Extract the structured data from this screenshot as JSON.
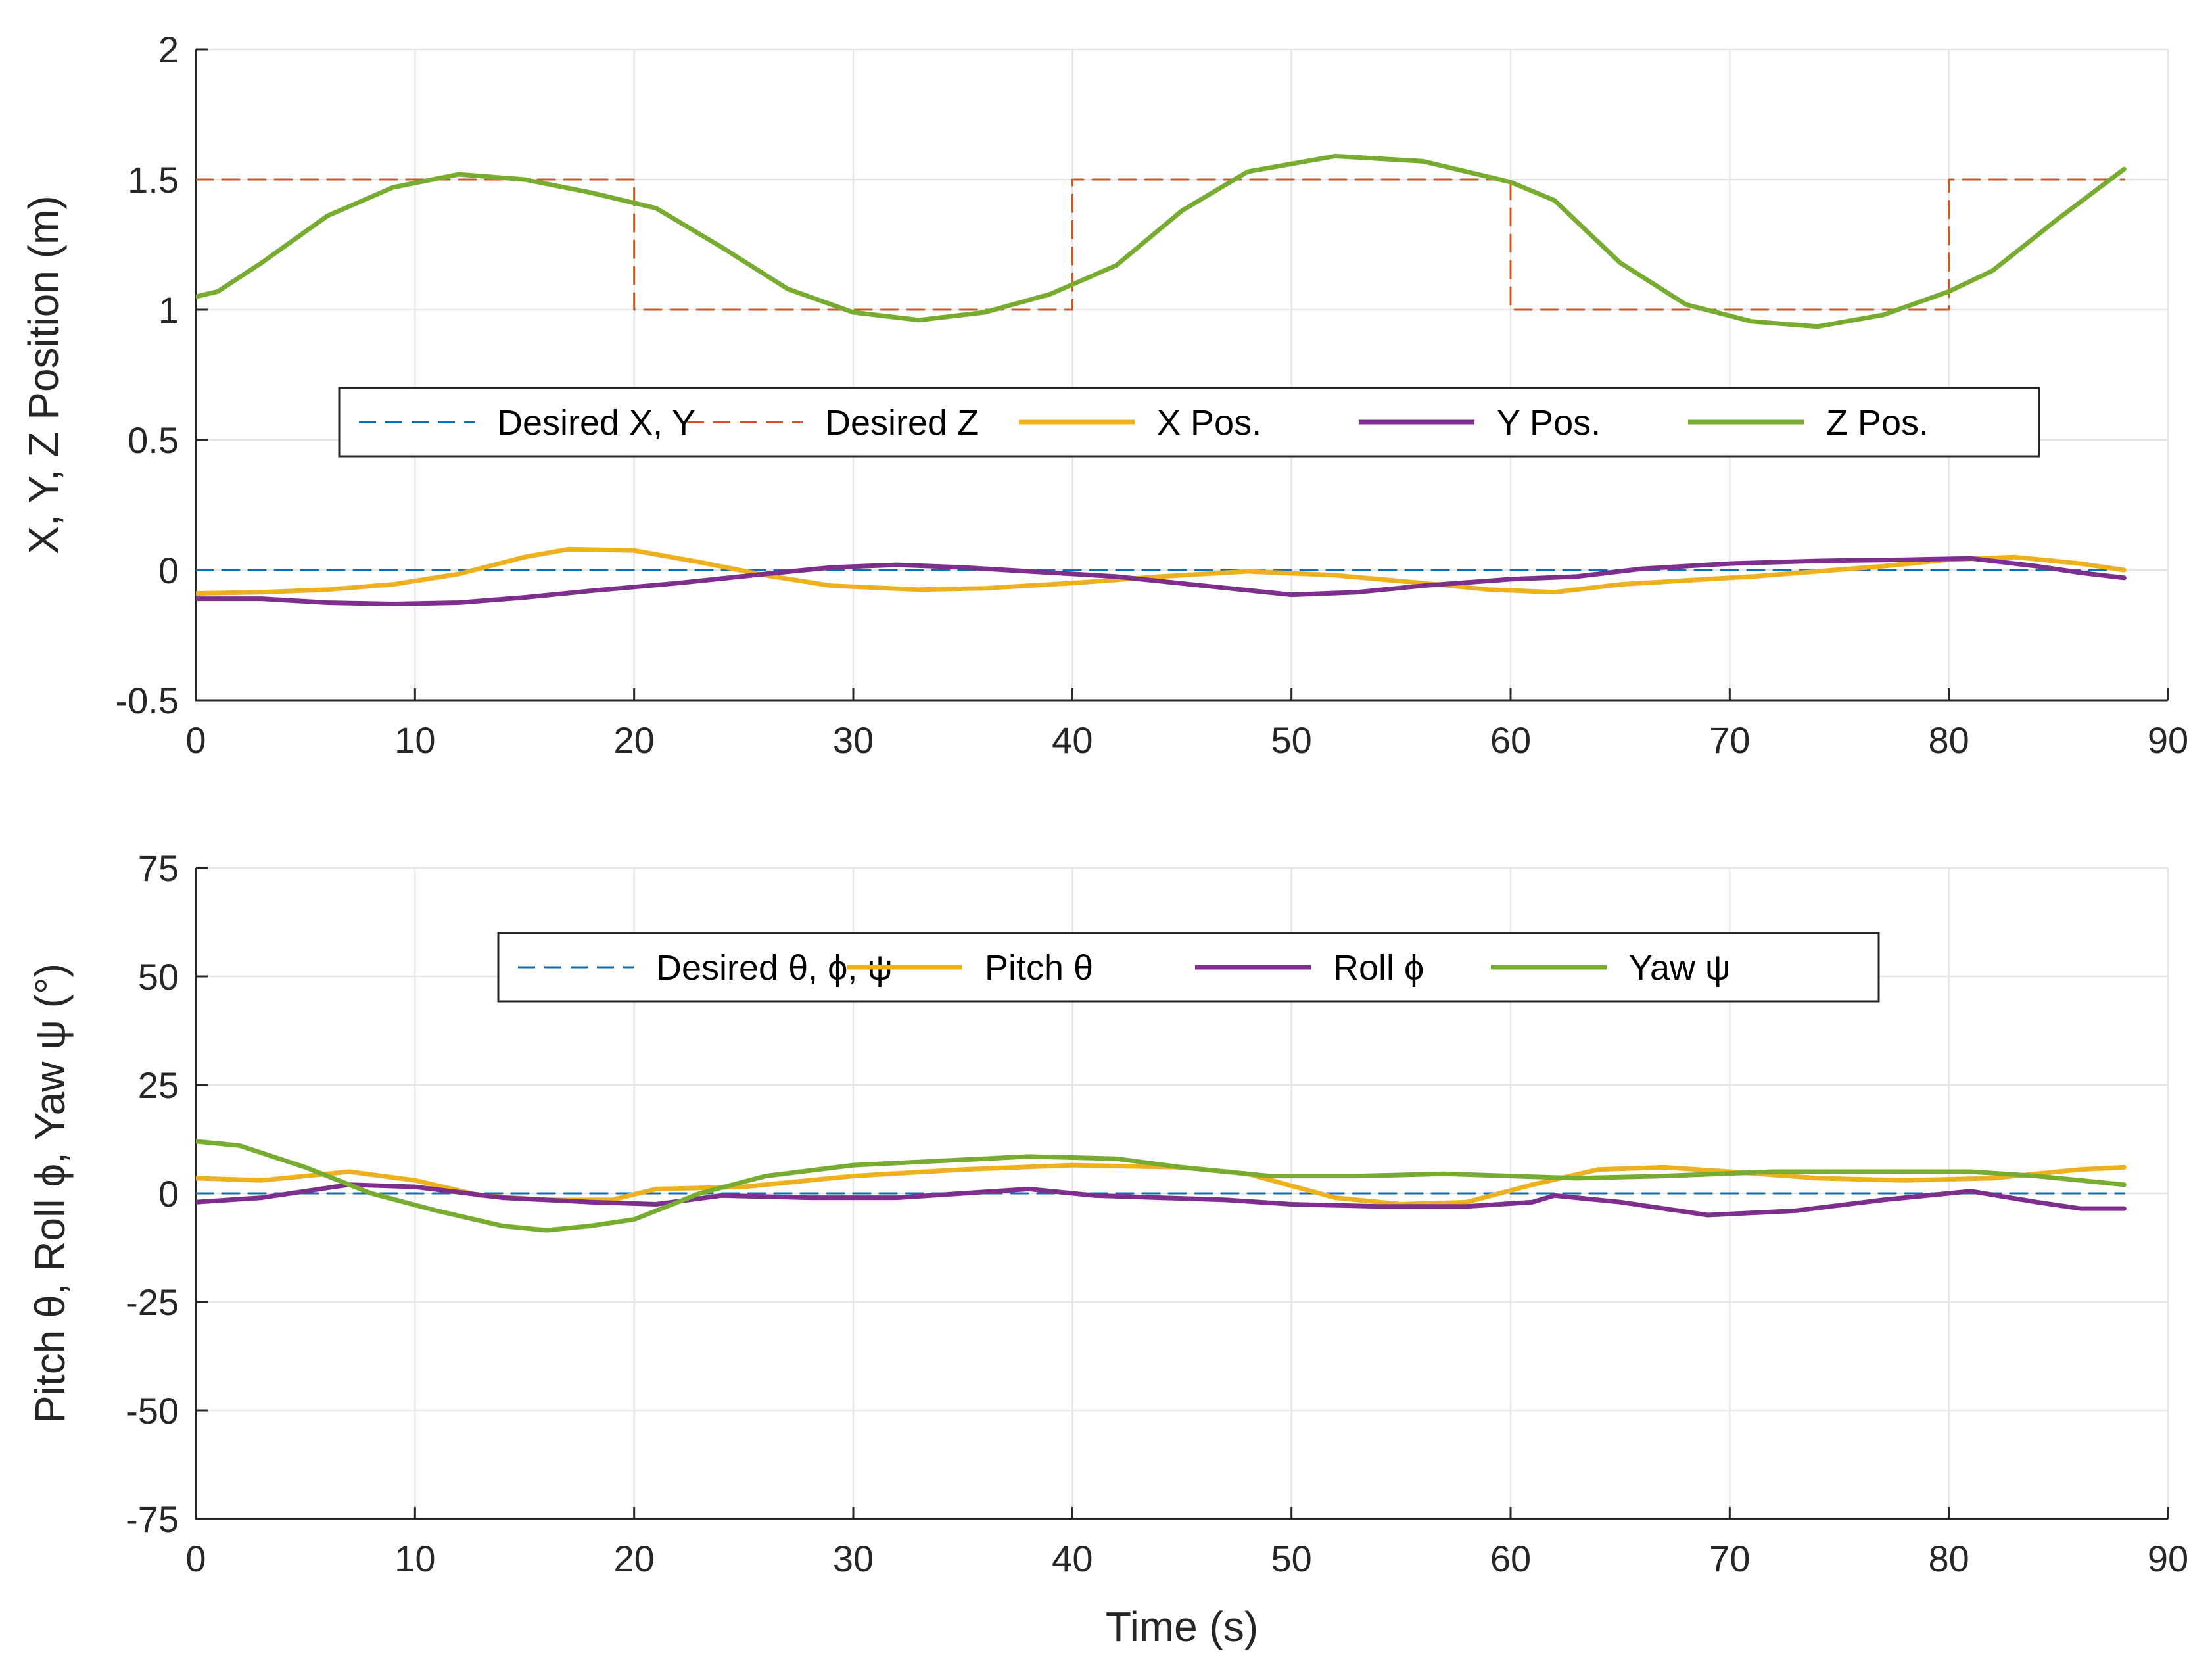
{
  "chart_data": [
    {
      "type": "line",
      "id": "position",
      "xlabel": "",
      "ylabel": "X, Y, Z Position (m)",
      "xlim": [
        0,
        90
      ],
      "ylim": [
        -0.5,
        2
      ],
      "xticks": [
        0,
        10,
        20,
        30,
        40,
        50,
        60,
        70,
        80,
        90
      ],
      "yticks": [
        -0.5,
        0,
        0.5,
        1,
        1.5,
        2
      ],
      "xtick_labels": [
        "0",
        "10",
        "20",
        "30",
        "40",
        "50",
        "60",
        "70",
        "80",
        "90"
      ],
      "ytick_labels": [
        "-0.5",
        "0",
        "0.5",
        "1",
        "1.5",
        "2"
      ],
      "grid": true,
      "legend_placement": "center, single row",
      "series": [
        {
          "name": "Desired X, Y",
          "color": "#0072bd",
          "style": "dashed",
          "x": [
            0,
            88
          ],
          "y": [
            0,
            0
          ]
        },
        {
          "name": "Desired Z",
          "color": "#d95319",
          "style": "dashed",
          "x": [
            0,
            20,
            20,
            40,
            40,
            60,
            60,
            80,
            80,
            88
          ],
          "y": [
            1.5,
            1.5,
            1.0,
            1.0,
            1.5,
            1.5,
            1.0,
            1.0,
            1.5,
            1.5
          ]
        },
        {
          "name": "X Pos.",
          "color": "#edb120",
          "style": "solid",
          "x": [
            0,
            3,
            6,
            9,
            12,
            15,
            17,
            20,
            23,
            26,
            29,
            33,
            36,
            40,
            44,
            48,
            52,
            56,
            59,
            62,
            65,
            68,
            71,
            74,
            77,
            80,
            83,
            86,
            88
          ],
          "y": [
            -0.09,
            -0.085,
            -0.075,
            -0.055,
            -0.015,
            0.05,
            0.08,
            0.075,
            0.03,
            -0.02,
            -0.06,
            -0.075,
            -0.07,
            -0.05,
            -0.025,
            -0.005,
            -0.02,
            -0.05,
            -0.075,
            -0.085,
            -0.055,
            -0.04,
            -0.025,
            -0.005,
            0.015,
            0.04,
            0.05,
            0.025,
            0.0
          ]
        },
        {
          "name": "Y Pos.",
          "color": "#7e2f8e",
          "style": "solid",
          "x": [
            0,
            3,
            6,
            9,
            12,
            15,
            18,
            22,
            26,
            29,
            32,
            35,
            38,
            42,
            46,
            50,
            53,
            56,
            60,
            63,
            66,
            70,
            74,
            78,
            81,
            84,
            86,
            88
          ],
          "y": [
            -0.11,
            -0.11,
            -0.125,
            -0.13,
            -0.125,
            -0.105,
            -0.08,
            -0.05,
            -0.015,
            0.01,
            0.02,
            0.01,
            -0.005,
            -0.025,
            -0.06,
            -0.095,
            -0.085,
            -0.06,
            -0.035,
            -0.025,
            0.005,
            0.025,
            0.035,
            0.04,
            0.045,
            0.015,
            -0.01,
            -0.03
          ]
        },
        {
          "name": "Z Pos.",
          "color": "#77ac30",
          "style": "solid",
          "x": [
            0,
            1,
            3,
            6,
            9,
            12,
            15,
            18,
            21,
            24,
            27,
            30,
            33,
            36,
            39,
            42,
            45,
            48,
            52,
            56,
            60,
            62,
            65,
            68,
            71,
            74,
            77,
            80,
            82,
            85,
            88
          ],
          "y": [
            1.05,
            1.07,
            1.18,
            1.36,
            1.47,
            1.52,
            1.5,
            1.45,
            1.39,
            1.24,
            1.08,
            0.99,
            0.96,
            0.99,
            1.06,
            1.17,
            1.38,
            1.53,
            1.59,
            1.57,
            1.49,
            1.42,
            1.18,
            1.02,
            0.955,
            0.935,
            0.98,
            1.07,
            1.15,
            1.35,
            1.54
          ]
        }
      ]
    },
    {
      "type": "line",
      "id": "attitude",
      "xlabel": "Time (s)",
      "ylabel": "Pitch θ, Roll ϕ, Yaw ψ (°)",
      "xlim": [
        0,
        90
      ],
      "ylim": [
        -75,
        75
      ],
      "xticks": [
        0,
        10,
        20,
        30,
        40,
        50,
        60,
        70,
        80,
        90
      ],
      "yticks": [
        -75,
        -50,
        -25,
        0,
        25,
        50,
        75
      ],
      "xtick_labels": [
        "0",
        "10",
        "20",
        "30",
        "40",
        "50",
        "60",
        "70",
        "80",
        "90"
      ],
      "ytick_labels": [
        "-75",
        "-50",
        "-25",
        "0",
        "25",
        "50",
        "75"
      ],
      "grid": true,
      "legend_placement": "upper center, single row",
      "series": [
        {
          "name": "Desired θ, ϕ, ψ",
          "color": "#0072bd",
          "style": "dashed",
          "x": [
            0,
            88
          ],
          "y": [
            0,
            0
          ]
        },
        {
          "name": "Pitch θ",
          "color": "#edb120",
          "style": "solid",
          "x": [
            0,
            3,
            7,
            10,
            13,
            16,
            19,
            21,
            25,
            30,
            35,
            40,
            45,
            48,
            52,
            55,
            58,
            61,
            64,
            67,
            70,
            74,
            78,
            82,
            86,
            88
          ],
          "y": [
            3.5,
            3,
            5,
            3,
            -0.5,
            -1.5,
            -1.5,
            1,
            1.5,
            4,
            5.5,
            6.5,
            6,
            4.5,
            -1,
            -2.5,
            -2,
            2,
            5.5,
            6,
            5,
            3.5,
            3,
            3.5,
            5.5,
            6
          ]
        },
        {
          "name": "Roll ϕ",
          "color": "#7e2f8e",
          "style": "solid",
          "x": [
            0,
            3,
            7,
            10,
            14,
            18,
            21,
            24,
            28,
            32,
            35,
            38,
            41,
            44,
            47,
            50,
            54,
            58,
            61,
            62,
            65,
            69,
            73,
            77,
            81,
            84,
            86,
            88
          ],
          "y": [
            -2,
            -1,
            2,
            1.5,
            -1,
            -2,
            -2.5,
            -0.5,
            -1,
            -1,
            0,
            1,
            -0.5,
            -1,
            -1.5,
            -2.5,
            -3,
            -3,
            -2,
            -0.5,
            -2,
            -5,
            -4,
            -1.5,
            0.5,
            -2,
            -3.5,
            -3.5
          ]
        },
        {
          "name": "Yaw ψ",
          "color": "#77ac30",
          "style": "solid",
          "x": [
            0,
            2,
            5,
            8,
            11,
            14,
            16,
            18,
            20,
            23,
            26,
            30,
            34,
            38,
            42,
            45,
            49,
            53,
            57,
            60,
            63,
            67,
            72,
            77,
            81,
            84,
            86,
            88
          ],
          "y": [
            12,
            11,
            6,
            0,
            -4,
            -7.5,
            -8.5,
            -7.5,
            -6,
            0,
            4,
            6.5,
            7.5,
            8.5,
            8,
            6,
            4,
            4,
            4.5,
            4,
            3.5,
            4,
            5,
            5,
            5,
            4,
            3,
            2
          ]
        }
      ]
    }
  ]
}
